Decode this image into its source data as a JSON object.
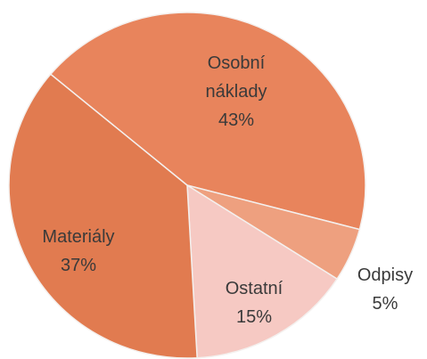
{
  "chart_data": {
    "type": "pie",
    "categories": [
      "Osobní náklady",
      "Odpisy",
      "Ostatní",
      "Materiály"
    ],
    "values": [
      43,
      5,
      15,
      37
    ],
    "value_labels": [
      "43%",
      "5%",
      "15%",
      "37%"
    ],
    "colors": [
      "#e8845c",
      "#eea07f",
      "#f6c9c3",
      "#e17b50"
    ]
  }
}
